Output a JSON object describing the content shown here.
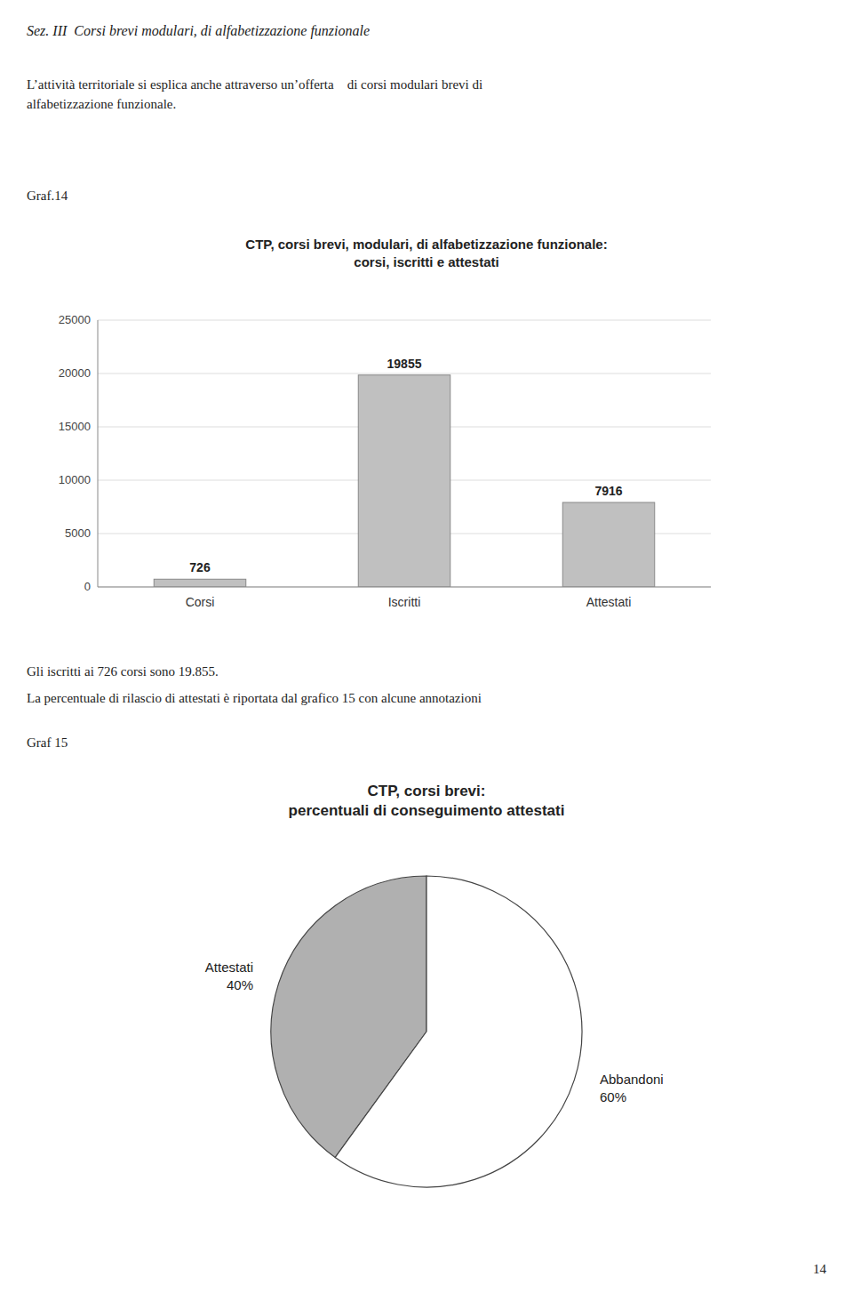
{
  "page": {
    "title": "Sez. III  Corsi brevi modulari, di alfabetizzazione funzionale",
    "page_number": "14"
  },
  "chart_data": [
    {
      "type": "bar",
      "intro": [
        "L’attività territoriale si esplica anche attraverso un’offerta    di corsi modulari brevi di",
        "alfabetizzazione funzionale."
      ],
      "label": "Graf.14",
      "title": "CTP, corsi brevi, modulari, di alfabetizzazione funzionale:\ncorsi, iscritti e attestati",
      "categories": [
        "Corsi",
        "Iscritti",
        "Attestati"
      ],
      "values": [
        726,
        19855,
        7916
      ],
      "color": "#c0c0c0",
      "ylim": [
        0,
        25000
      ],
      "yticks": [
        0,
        5000,
        10000,
        15000,
        20000,
        25000
      ],
      "grid": true,
      "data_labels": true
    },
    {
      "type": "pie",
      "intro": [
        "Gli iscritti ai 726 corsi sono 19.855.",
        "La percentuale di rilascio di attestati è riportata dal grafico 15 con alcune annotazioni"
      ],
      "label": "Graf 15",
      "title": "CTP, corsi brevi:\npercentuali di conseguimento attestati",
      "categories": [
        "Attestati",
        "Abbandoni"
      ],
      "values": [
        40,
        60
      ],
      "value_labels": [
        "40%",
        "60%"
      ],
      "colors": [
        "#b0b0b0",
        "#ffffff"
      ],
      "data_labels": true
    }
  ]
}
